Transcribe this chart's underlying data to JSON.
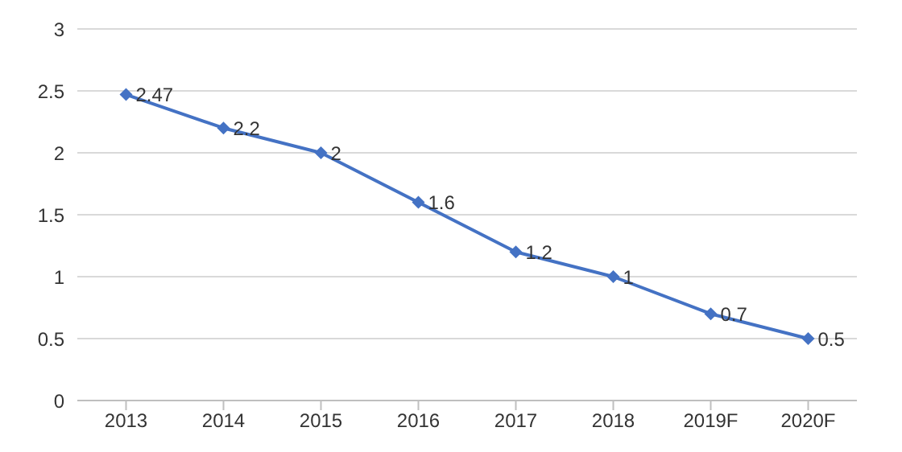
{
  "chart_data": {
    "type": "line",
    "categories": [
      "2013",
      "2014",
      "2015",
      "2016",
      "2017",
      "2018",
      "2019F",
      "2020F"
    ],
    "series": [
      {
        "color": "#4472c4",
        "values": [
          2.47,
          2.2,
          2,
          1.6,
          1.2,
          1,
          0.7,
          0.5
        ]
      }
    ],
    "ylim": [
      0,
      3
    ],
    "yticks": [
      0,
      0.5,
      1,
      1.5,
      2,
      2.5,
      3
    ],
    "grid": "y",
    "marker": "diamond",
    "line_style": "solid",
    "data_labels": true,
    "legend": false
  }
}
